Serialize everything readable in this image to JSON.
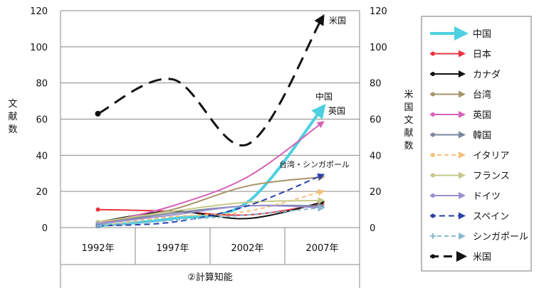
{
  "chart_data": {
    "type": "line",
    "categories": [
      "1992年",
      "1997年",
      "2002年",
      "2007年"
    ],
    "ylim": [
      0,
      120
    ],
    "y2lim": [
      0,
      120
    ],
    "yticks": [
      0,
      20,
      40,
      60,
      80,
      100,
      120
    ],
    "ylabel": "文献数",
    "y2label": "米国文献数",
    "xlabel": "②計算知能",
    "grid": "horizontal",
    "legend_position": "right",
    "series": [
      {
        "name": "中国",
        "color": "#4dd0e1",
        "dash": "",
        "values": [
          1,
          5,
          14,
          66
        ],
        "marker": "none"
      },
      {
        "name": "日本",
        "color": "#e8343f",
        "dash": "",
        "values": [
          10,
          9,
          7,
          13
        ],
        "marker": "circle"
      },
      {
        "name": "カナダ",
        "color": "#111111",
        "dash": "",
        "values": [
          3,
          9,
          5,
          14
        ],
        "marker": "circle"
      },
      {
        "name": "台湾",
        "color": "#a8946a",
        "dash": "",
        "values": [
          2,
          10,
          23,
          28
        ],
        "marker": "circle"
      },
      {
        "name": "英国",
        "color": "#d663b8",
        "dash": "",
        "values": [
          2,
          12,
          28,
          58
        ],
        "marker": "circle"
      },
      {
        "name": "韓国",
        "color": "#7a879c",
        "dash": "",
        "values": [
          2,
          8,
          12,
          12
        ],
        "marker": "circle"
      },
      {
        "name": "イタリア",
        "color": "#f2c27c",
        "dash": "6 4",
        "values": [
          1,
          6,
          9,
          20
        ],
        "marker": "circle"
      },
      {
        "name": "フランス",
        "color": "#c6c98a",
        "dash": "",
        "values": [
          3,
          9,
          14,
          15
        ],
        "marker": "circle"
      },
      {
        "name": "ドイツ",
        "color": "#9a8fd0",
        "dash": "",
        "values": [
          2,
          7,
          12,
          11
        ],
        "marker": "circle"
      },
      {
        "name": "スペイン",
        "color": "#2b3fa8",
        "dash": "8 5",
        "values": [
          1,
          3,
          12,
          29
        ],
        "marker": "circle"
      },
      {
        "name": "シンガポール",
        "color": "#8ab9cf",
        "dash": "6 4",
        "values": [
          1,
          4,
          7,
          11
        ],
        "marker": "plus"
      },
      {
        "name": "米国",
        "color": "#111111",
        "dash": "18 10",
        "values": [
          63,
          82,
          46,
          116
        ],
        "marker": "circle",
        "axis": "right"
      }
    ],
    "annotations": [
      "米国",
      "中国",
      "英国",
      "台湾・シンガポール"
    ]
  }
}
